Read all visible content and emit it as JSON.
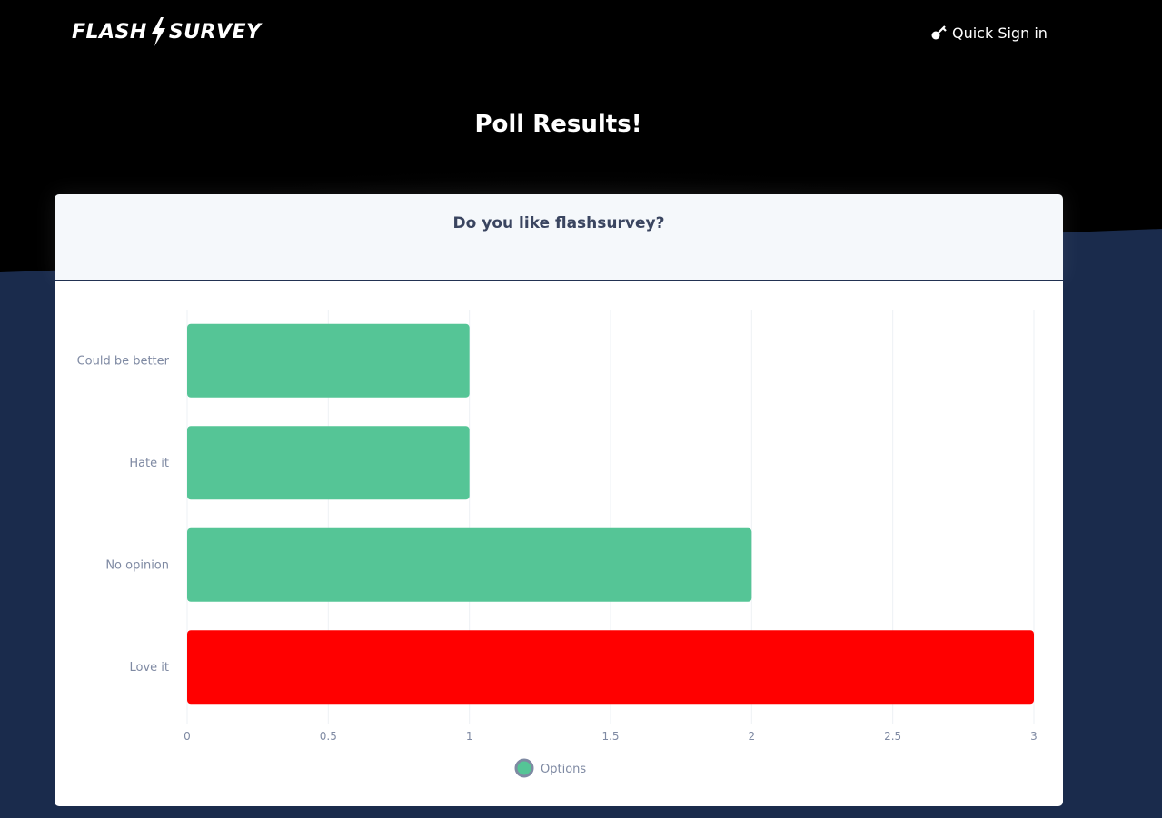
{
  "header": {
    "logo_left": "FLASH",
    "logo_right": "SURVEY",
    "signin_label": "Quick Sign in"
  },
  "page": {
    "title": "Poll Results!"
  },
  "poll": {
    "question": "Do you like flashsurvey?"
  },
  "colors": {
    "bar_default": "#55c596",
    "bar_highlight": "#ff0000",
    "legend_border": "#7f8aa3",
    "background_top": "#000000",
    "background_bottom": "#1a2b4c"
  },
  "chart_data": {
    "type": "bar",
    "orientation": "horizontal",
    "categories": [
      "Could be better",
      "Hate it",
      "No opinion",
      "Love it"
    ],
    "series": [
      {
        "name": "Options",
        "values": [
          1,
          1,
          2,
          3
        ]
      }
    ],
    "highlight_index": 3,
    "xlim": [
      0,
      3
    ],
    "x_ticks": [
      "0",
      "0.5",
      "1",
      "1.5",
      "2",
      "2.5",
      "3"
    ],
    "grid": true,
    "legend_position": "bottom-center"
  }
}
